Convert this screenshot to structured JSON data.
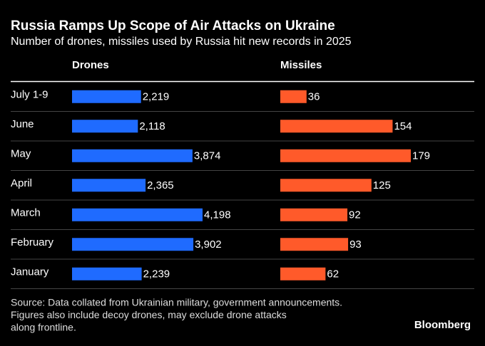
{
  "header": {
    "title": "Russia Ramps Up Scope of Air Attacks on Ukraine",
    "subtitle": "Number of drones, missiles used by Russia hit new records in 2025"
  },
  "chart_data": {
    "type": "bar",
    "orientation": "horizontal",
    "layout": "panels",
    "categories": [
      "July 1-9",
      "June",
      "May",
      "April",
      "March",
      "February",
      "January"
    ],
    "series": [
      {
        "name": "Drones",
        "color": "#1f6bff",
        "values": [
          2219,
          2118,
          3874,
          2365,
          4198,
          3902,
          2239
        ],
        "value_labels": [
          "2,219",
          "2,118",
          "3,874",
          "2,365",
          "4,198",
          "3,902",
          "2,239"
        ]
      },
      {
        "name": "Missiles",
        "color": "#ff5a2a",
        "values": [
          36,
          154,
          179,
          125,
          92,
          93,
          62
        ]
      }
    ]
  },
  "footer": {
    "source": [
      "Source: Data collated from Ukrainian military, government announcements.",
      "Figures also include decoy drones, may exclude drone attacks",
      "along frontline."
    ],
    "brand": "Bloomberg"
  }
}
